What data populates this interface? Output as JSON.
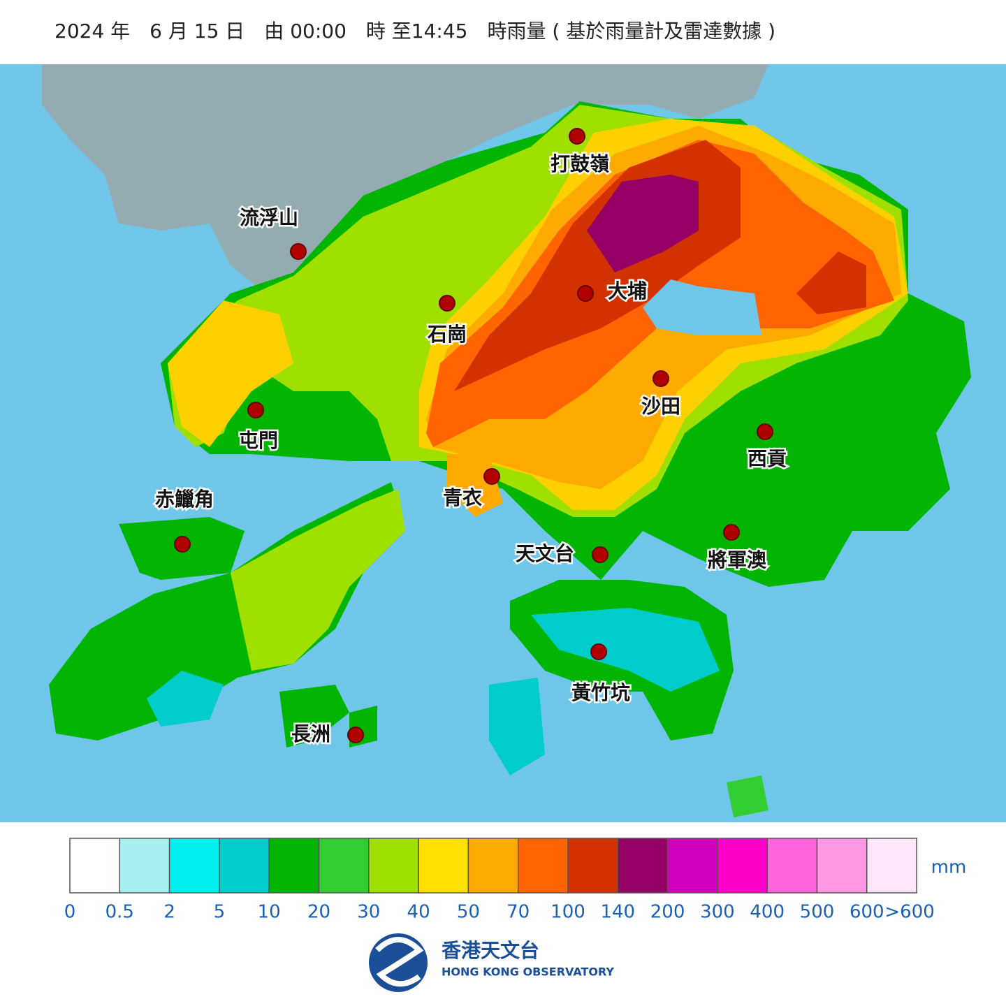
{
  "header": {
    "title": "2024 年　6 月 15 日　由 00:00　時 至14:45　時雨量 ( 基於雨量計及雷達數據 )"
  },
  "stations": [
    "打鼓嶺",
    "流浮山",
    "大埔",
    "石崗",
    "沙田",
    "屯門",
    "西貢",
    "青衣",
    "赤鱲角",
    "天文台",
    "將軍澳",
    "黃竹坑",
    "長洲"
  ],
  "legend": {
    "unit": "mm",
    "bins": [
      0,
      0.5,
      2,
      5,
      10,
      20,
      30,
      40,
      50,
      70,
      100,
      140,
      200,
      300,
      400,
      500,
      600
    ],
    "over_label": ">600",
    "colors": [
      "#ffffff",
      "#a6f0f0",
      "#00f0f0",
      "#00cccc",
      "#00b400",
      "#32cd32",
      "#a0e000",
      "#ffe000",
      "#ffaa00",
      "#ff6400",
      "#d23200",
      "#960064",
      "#d200be",
      "#ff00c8",
      "#ff64dc",
      "#ff96e6",
      "#ffe6fa"
    ]
  },
  "logo": {
    "name_zh": "香港天文台",
    "name_en": "HONG KONG OBSERVATORY"
  }
}
